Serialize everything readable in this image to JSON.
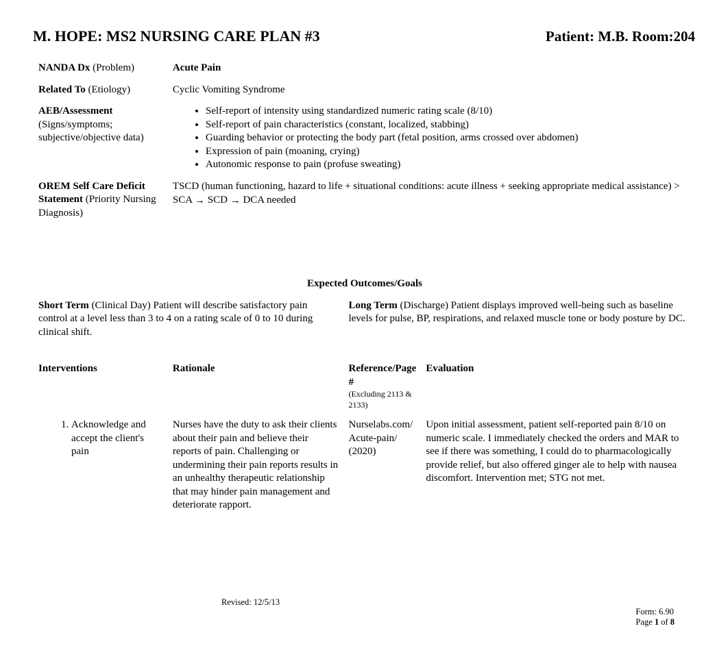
{
  "header": {
    "left": "M. HOPE: MS2 NURSING CARE PLAN #3",
    "right": "Patient: M.B. Room:204"
  },
  "rows": {
    "nanda_label_bold": "NANDA Dx",
    "nanda_label_sub": " (Problem)",
    "nanda_value": "Acute Pain",
    "related_label_bold": "Related To",
    "related_label_sub": " (Etiology)",
    "related_value": "Cyclic Vomiting Syndrome",
    "aeb_label_bold": "AEB/Assessment",
    "aeb_label_sub": "(Signs/symptoms; subjective/objective data)",
    "aeb_items": [
      "Self-report of intensity using standardized numeric rating scale (8/10)",
      "Self-report of pain characteristics (constant, localized, stabbing)",
      "Guarding behavior or protecting the body part (fetal position, arms crossed over abdomen)",
      "Expression of pain (moaning, crying)",
      "Autonomic response to pain (profuse sweating)"
    ],
    "orem_label_bold": "OREM Self Care Deficit Statement",
    "orem_label_sub": " (Priority Nursing Diagnosis)",
    "orem_pre": "TSCD (human functioning, hazard to life + situational conditions: acute illness + seeking appropriate medical assistance) > SCA ",
    "orem_mid": "  SCD  ",
    "orem_post": "  DCA needed"
  },
  "outcomes": {
    "header": "Expected Outcomes/Goals",
    "short_label": "Short Term",
    "short_sub": " (Clinical Day) ",
    "short_text": "Patient will describe satisfactory pain control at a level less than 3 to 4 on a rating scale of 0 to 10 during clinical shift.",
    "long_label": "Long Term",
    "long_sub": " (Discharge) ",
    "long_text": "Patient displays improved well-being such as baseline levels for pulse, BP, respirations, and relaxed muscle tone or body posture by DC."
  },
  "table": {
    "h_interventions": "Interventions",
    "h_rationale": "Rationale",
    "h_reference": "Reference/Page #",
    "h_reference_sub": "(Excluding 2113 & 2133)",
    "h_evaluation": "Evaluation",
    "intervention_1": "Acknowledge and accept the client's pain",
    "rationale_1": "Nurses have the duty to ask their clients about their pain and believe their reports of pain. Challenging or undermining their pain reports results in an unhealthy therapeutic relationship that may hinder pain management and deteriorate rapport.",
    "reference_1a": "Nurselabs.com/",
    "reference_1b": "Acute-pain/",
    "reference_1c": "(2020)",
    "evaluation_1": "Upon initial assessment, patient self-reported pain 8/10 on numeric scale. I immediately checked the orders and MAR to see if there was something, I could do to pharmacologically provide relief, but also offered ginger ale to help with nausea discomfort. Intervention met; STG not met."
  },
  "footer": {
    "revised": "Revised: 12/5/13",
    "form": "Form: 6.90",
    "page_pre": "Page ",
    "page_cur": "1",
    "page_mid": " of ",
    "page_tot": "8"
  }
}
